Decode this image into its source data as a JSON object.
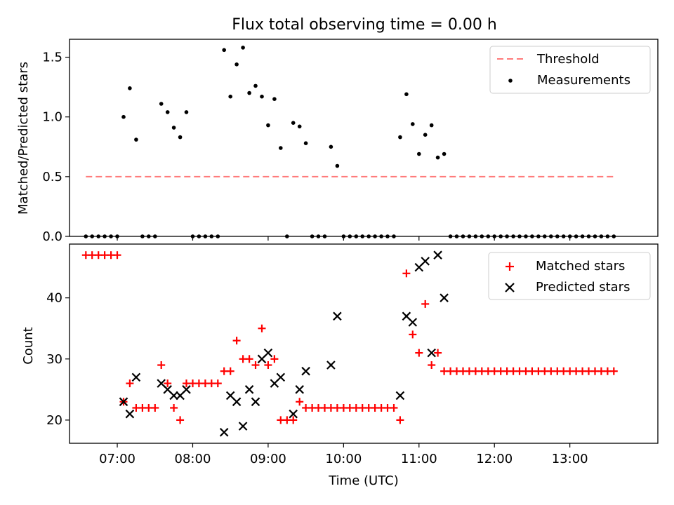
{
  "figure": {
    "title": "Flux total observing time = 0.00 h",
    "xlabel": "Time (UTC)"
  },
  "chart_data": [
    {
      "type": "scatter",
      "panel": "top",
      "ylabel": "Matched/Predicted stars",
      "xlim": [
        "06:22",
        "14:10"
      ],
      "ylim": [
        0,
        1.65
      ],
      "yticks": [
        0.0,
        0.5,
        1.0,
        1.5
      ],
      "ytick_labels": [
        "0.0",
        "0.5",
        "1.0",
        "1.5"
      ],
      "legend_placement": "top-right",
      "series": [
        {
          "name": "Threshold",
          "kind": "dashed-line",
          "color": "#ff7a7a",
          "x": [
            "06:35",
            "13:37"
          ],
          "y": [
            0.5,
            0.5
          ]
        },
        {
          "name": "Measurements",
          "kind": "dot",
          "color": "#000000",
          "x": [
            "06:35",
            "06:40",
            "06:45",
            "06:50",
            "06:55",
            "07:00",
            "07:05",
            "07:10",
            "07:15",
            "07:20",
            "07:25",
            "07:30",
            "07:35",
            "07:40",
            "07:45",
            "07:50",
            "07:55",
            "08:00",
            "08:05",
            "08:10",
            "08:15",
            "08:20",
            "08:25",
            "08:30",
            "08:35",
            "08:40",
            "08:45",
            "08:50",
            "08:55",
            "09:00",
            "09:05",
            "09:10",
            "09:15",
            "09:20",
            "09:25",
            "09:30",
            "09:35",
            "09:40",
            "09:45",
            "09:50",
            "09:55",
            "10:00",
            "10:05",
            "10:10",
            "10:15",
            "10:20",
            "10:25",
            "10:30",
            "10:35",
            "10:40",
            "10:45",
            "10:50",
            "10:55",
            "11:00",
            "11:05",
            "11:10",
            "11:15",
            "11:20",
            "11:25",
            "11:30",
            "11:35",
            "11:40",
            "11:45",
            "11:50",
            "11:55",
            "12:00",
            "12:05",
            "12:10",
            "12:15",
            "12:20",
            "12:25",
            "12:30",
            "12:35",
            "12:40",
            "12:45",
            "12:50",
            "12:55",
            "13:00",
            "13:05",
            "13:10",
            "13:15",
            "13:20",
            "13:25",
            "13:30",
            "13:35"
          ],
          "y": [
            0,
            0,
            0,
            0,
            0,
            0,
            1.0,
            1.24,
            0.81,
            0,
            0,
            0,
            1.11,
            1.04,
            0.91,
            0.83,
            1.04,
            0,
            0,
            0,
            0,
            0,
            1.56,
            1.17,
            1.44,
            1.58,
            1.2,
            1.26,
            1.17,
            0.93,
            1.15,
            0.74,
            0,
            0.95,
            0.92,
            0.78,
            0,
            0,
            0,
            0.75,
            0.59,
            0,
            0,
            0,
            0,
            0,
            0,
            0,
            0,
            0,
            0.83,
            1.19,
            0.94,
            0.69,
            0.85,
            0.93,
            0.66,
            0.69,
            0,
            0,
            0,
            0,
            0,
            0,
            0,
            0,
            0,
            0,
            0,
            0,
            0,
            0,
            0,
            0,
            0,
            0,
            0,
            0,
            0,
            0,
            0,
            0,
            0,
            0,
            0
          ]
        }
      ]
    },
    {
      "type": "scatter",
      "panel": "bottom",
      "ylabel": "Count",
      "xlim": [
        "06:22",
        "14:10"
      ],
      "ylim": [
        16.2,
        48.8
      ],
      "yticks": [
        20,
        30,
        40
      ],
      "ytick_labels": [
        "20",
        "30",
        "40"
      ],
      "xticks": [
        "07:00",
        "08:00",
        "09:00",
        "10:00",
        "11:00",
        "12:00",
        "13:00"
      ],
      "xtick_labels": [
        "07:00",
        "08:00",
        "09:00",
        "10:00",
        "11:00",
        "12:00",
        "13:00"
      ],
      "legend_placement": "top-right",
      "series": [
        {
          "name": "Matched stars",
          "kind": "plus",
          "color": "#ff0000",
          "x": [
            "06:35",
            "06:40",
            "06:45",
            "06:50",
            "06:55",
            "07:00",
            "07:05",
            "07:10",
            "07:15",
            "07:20",
            "07:25",
            "07:30",
            "07:35",
            "07:40",
            "07:45",
            "07:50",
            "07:55",
            "08:00",
            "08:05",
            "08:10",
            "08:15",
            "08:20",
            "08:25",
            "08:30",
            "08:35",
            "08:40",
            "08:45",
            "08:50",
            "08:55",
            "09:00",
            "09:05",
            "09:10",
            "09:15",
            "09:20",
            "09:25",
            "09:30",
            "09:35",
            "09:40",
            "09:45",
            "09:50",
            "09:55",
            "10:00",
            "10:05",
            "10:10",
            "10:15",
            "10:20",
            "10:25",
            "10:30",
            "10:35",
            "10:40",
            "10:45",
            "10:50",
            "10:55",
            "11:00",
            "11:05",
            "11:10",
            "11:15",
            "11:20",
            "11:25",
            "11:30",
            "11:35",
            "11:40",
            "11:45",
            "11:50",
            "11:55",
            "12:00",
            "12:05",
            "12:10",
            "12:15",
            "12:20",
            "12:25",
            "12:30",
            "12:35",
            "12:40",
            "12:45",
            "12:50",
            "12:55",
            "13:00",
            "13:05",
            "13:10",
            "13:15",
            "13:20",
            "13:25",
            "13:30",
            "13:35"
          ],
          "y": [
            47,
            47,
            47,
            47,
            47,
            47,
            23,
            26,
            22,
            22,
            22,
            22,
            29,
            26,
            22,
            20,
            26,
            26,
            26,
            26,
            26,
            26,
            28,
            28,
            33,
            30,
            30,
            29,
            35,
            29,
            30,
            20,
            20,
            20,
            23,
            22,
            22,
            22,
            22,
            22,
            22,
            22,
            22,
            22,
            22,
            22,
            22,
            22,
            22,
            22,
            20,
            44,
            34,
            31,
            39,
            29,
            31,
            28,
            28,
            28,
            28,
            28,
            28,
            28,
            28,
            28,
            28,
            28,
            28,
            28,
            28,
            28,
            28,
            28,
            28,
            28,
            28,
            28,
            28,
            28,
            28,
            28,
            28,
            28,
            28
          ]
        },
        {
          "name": "Predicted stars",
          "kind": "cross",
          "color": "#000000",
          "x": [
            "07:05",
            "07:10",
            "07:15",
            "07:35",
            "07:40",
            "07:45",
            "07:50",
            "07:55",
            "08:25",
            "08:30",
            "08:35",
            "08:40",
            "08:45",
            "08:50",
            "08:55",
            "09:00",
            "09:05",
            "09:10",
            "09:20",
            "09:25",
            "09:30",
            "09:50",
            "09:55",
            "10:45",
            "10:50",
            "10:55",
            "11:00",
            "11:05",
            "11:10",
            "11:15",
            "11:20"
          ],
          "y": [
            23,
            21,
            27,
            26,
            25,
            24,
            24,
            25,
            18,
            24,
            23,
            19,
            25,
            23,
            30,
            31,
            26,
            27,
            21,
            25,
            28,
            29,
            37,
            24,
            37,
            36,
            45,
            46,
            31,
            47,
            40
          ]
        }
      ]
    }
  ]
}
